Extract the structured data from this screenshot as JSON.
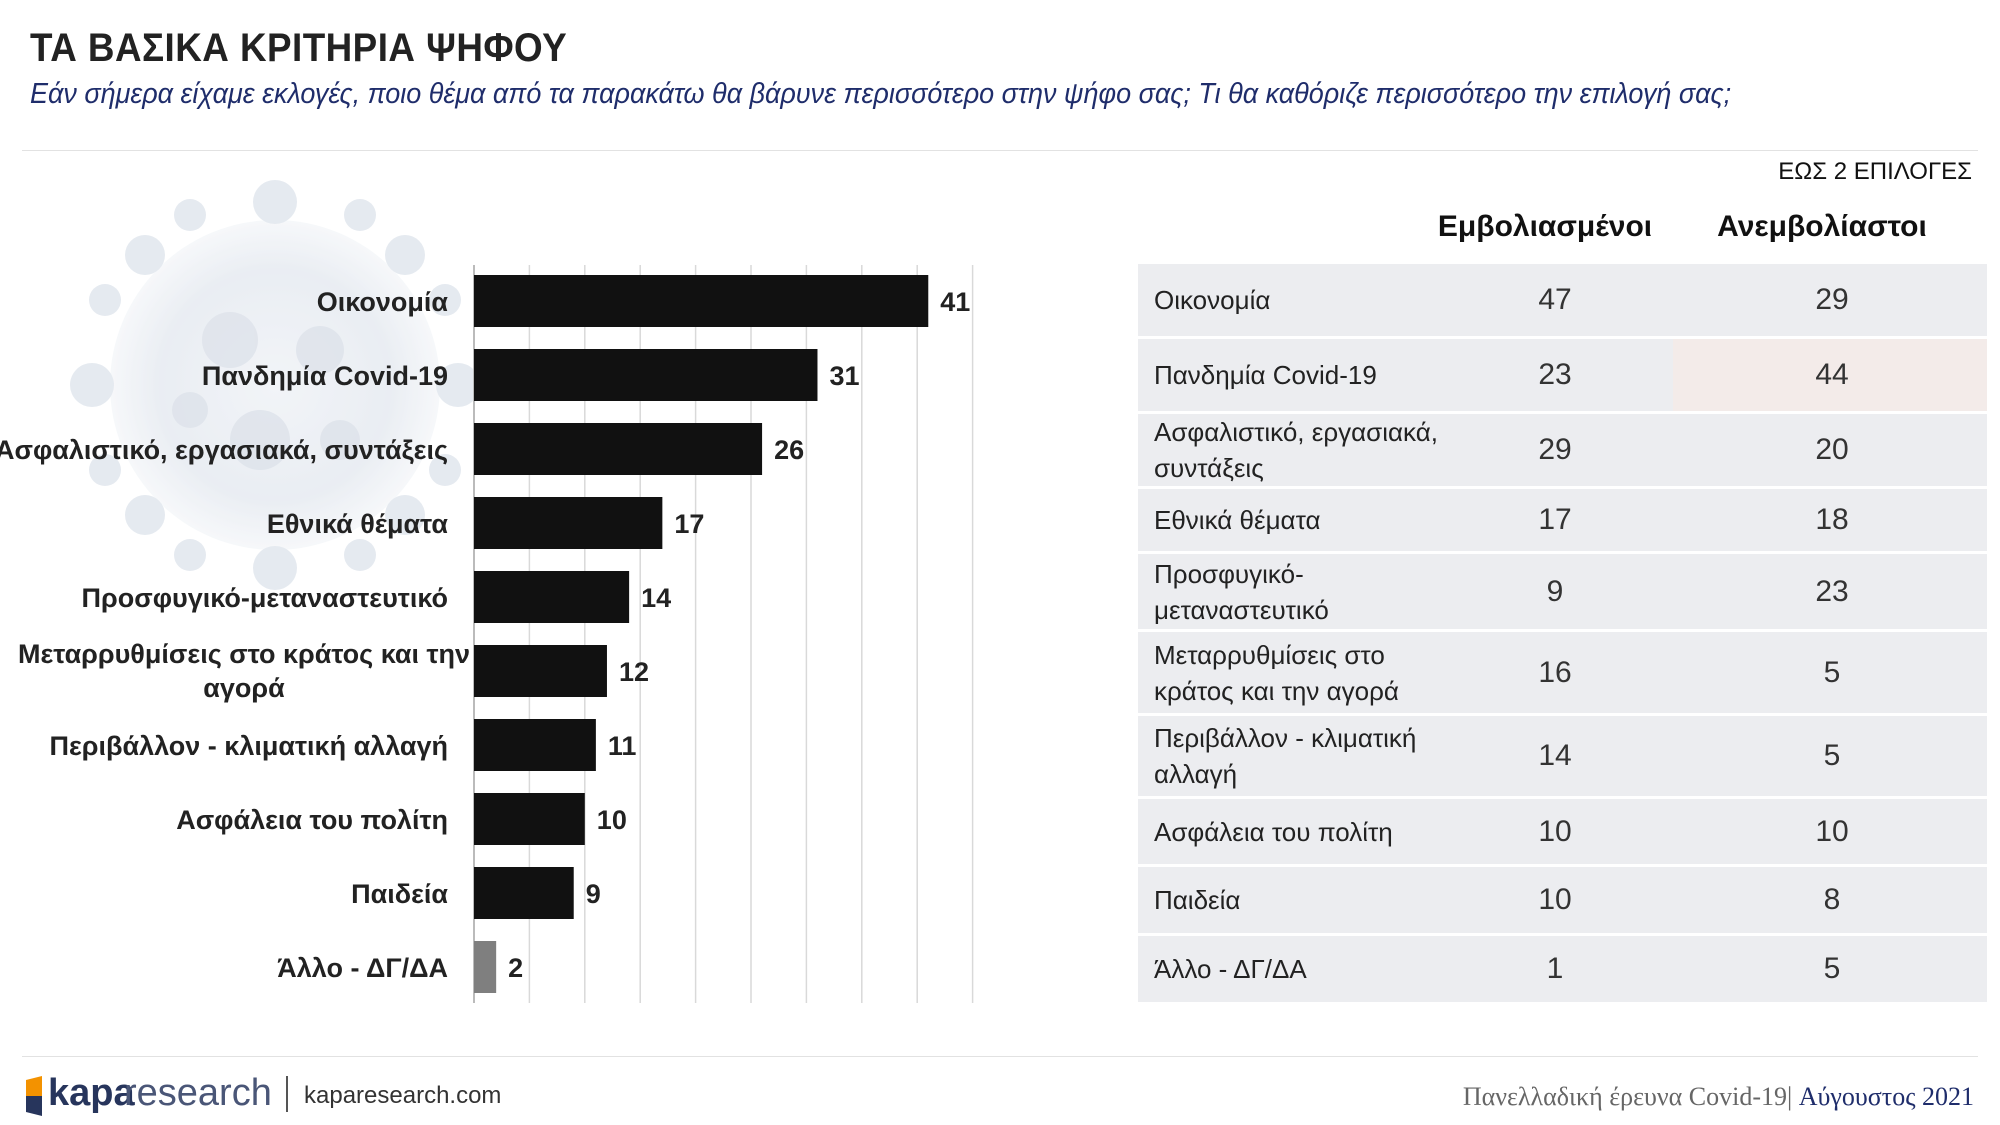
{
  "title": "ΤΑ ΒΑΣΙΚΑ ΚΡΙΤΗΡΙΑ ΨΗΦΟΥ",
  "subtitle": "Εάν σήμερα είχαμε εκλογές, ποιο θέμα από τα παρακάτω θα βάρυνε περισσότερο στην ψήφο σας; Τι θα καθόριζε περισσότερο την επιλογή σας;",
  "note": "ΕΩΣ 2 ΕΠΙΛΟΓΕΣ",
  "colors": {
    "bar": "#111111",
    "bar_other": "#7f7f7f",
    "grid": "#d9d9d9",
    "table_bg": "#ecedf0",
    "highlight": "#f3ebe9"
  },
  "chart_data": {
    "type": "bar",
    "orientation": "horizontal",
    "categories": [
      "Οικονομία",
      "Πανδημία Covid-19",
      "Ασφαλιστικό, εργασιακά, συντάξεις",
      "Εθνικά θέματα",
      "Προσφυγικό-μεταναστευτικό",
      "Μεταρρυθμίσεις στο κράτος και την αγορά",
      "Περιβάλλον - κλιματική αλλαγή",
      "Ασφάλεια του πολίτη",
      "Παιδεία",
      "Άλλο - ΔΓ/ΔΑ"
    ],
    "values": [
      41,
      31,
      26,
      17,
      14,
      12,
      11,
      10,
      9,
      2
    ],
    "xlim": [
      0,
      45
    ],
    "grid": true,
    "data_labels": true
  },
  "table": {
    "headers": [
      "Εμβολιασμένοι",
      "Ανεμβολίαστοι"
    ],
    "rows": [
      {
        "label": "Οικονομία",
        "vaccinated": "47",
        "unvaccinated": "29"
      },
      {
        "label": "Πανδημία Covid-19",
        "vaccinated": "23",
        "unvaccinated": "44"
      },
      {
        "label": "Ασφαλιστικό, εργασιακά, συντάξεις",
        "vaccinated": "29",
        "unvaccinated": "20"
      },
      {
        "label": "Εθνικά θέματα",
        "vaccinated": "17",
        "unvaccinated": "18"
      },
      {
        "label": "Προσφυγικό-μεταναστευτικό",
        "vaccinated": "9",
        "unvaccinated": "23"
      },
      {
        "label": "Μεταρρυθμίσεις στο κράτος και την αγορά",
        "vaccinated": "16",
        "unvaccinated": "5"
      },
      {
        "label": "Περιβάλλον - κλιματική αλλαγή",
        "vaccinated": "14",
        "unvaccinated": "5"
      },
      {
        "label": "Ασφάλεια του πολίτη",
        "vaccinated": "10",
        "unvaccinated": "10"
      },
      {
        "label": "Παιδεία",
        "vaccinated": "10",
        "unvaccinated": "8"
      },
      {
        "label": "Άλλο - ΔΓ/ΔΑ",
        "vaccinated": "1",
        "unvaccinated": "5"
      }
    ],
    "highlight": {
      "row": 1,
      "column": "unvaccinated"
    }
  },
  "footer": {
    "logo_kapa": "kapa",
    "logo_research": "research",
    "site": "kaparesearch.com",
    "survey": "Πανελλαδική έρευνα Covid-19",
    "separator": "|",
    "month": "Αύγουστος 2021"
  }
}
